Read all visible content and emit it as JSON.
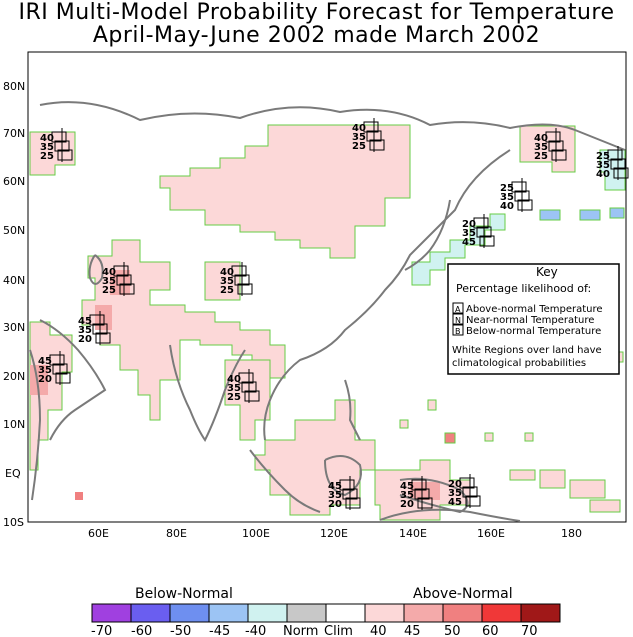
{
  "title": {
    "line1": "IRI Multi-Model Probability Forecast for Temperature",
    "line2": "April-May-June 2002 made March 2002"
  },
  "axes": {
    "lat_labels": [
      "80N",
      "70N",
      "60N",
      "50N",
      "40N",
      "30N",
      "20N",
      "10N",
      "EQ",
      "10S"
    ],
    "lon_labels": [
      "60E",
      "80E",
      "100E",
      "120E",
      "140E",
      "160E",
      "180"
    ]
  },
  "key": {
    "title": "Key",
    "subtitle": "Percentage likelihood of:",
    "rows": [
      {
        "mark": "A",
        "text": "Above-normal Temperature"
      },
      {
        "mark": "N",
        "text": "Near-normal Temperature"
      },
      {
        "mark": "B",
        "text": "Below-normal Temperature"
      }
    ],
    "note_line1": "White Regions over land have",
    "note_line2": "climatological probabilities"
  },
  "probability_boxes": [
    {
      "id": "n-europe-w",
      "values": [
        "40",
        "35",
        "25"
      ]
    },
    {
      "id": "n-siberia",
      "values": [
        "40",
        "35",
        "25"
      ]
    },
    {
      "id": "ne-siberia",
      "values": [
        "40",
        "35",
        "25"
      ]
    },
    {
      "id": "kamchatka",
      "values": [
        "25",
        "35",
        "40"
      ]
    },
    {
      "id": "sakhalin",
      "values": [
        "25",
        "35",
        "40"
      ]
    },
    {
      "id": "japan",
      "values": [
        "20",
        "35",
        "45"
      ]
    },
    {
      "id": "central-asia",
      "values": [
        "40",
        "35",
        "25"
      ]
    },
    {
      "id": "mongolia",
      "values": [
        "40",
        "35",
        "25"
      ]
    },
    {
      "id": "iran",
      "values": [
        "45",
        "35",
        "20"
      ]
    },
    {
      "id": "arabia",
      "values": [
        "45",
        "35",
        "20"
      ]
    },
    {
      "id": "se-asia",
      "values": [
        "40",
        "35",
        "25"
      ]
    },
    {
      "id": "indonesia",
      "values": [
        "45",
        "35",
        "20"
      ]
    },
    {
      "id": "png",
      "values": [
        "45",
        "35",
        "20"
      ]
    },
    {
      "id": "w-pacific",
      "values": [
        "20",
        "35",
        "45"
      ]
    }
  ],
  "colorbar": {
    "below_title": "Below-Normal",
    "above_title": "Above-Normal",
    "labels": [
      "-70",
      "-60",
      "-50",
      "-45",
      "-40",
      "Norm",
      "Clim",
      "40",
      "45",
      "50",
      "60",
      "70"
    ],
    "colors": [
      "#a040e0",
      "#6a5ef0",
      "#6e8ff0",
      "#9cc4f4",
      "#d0f2f0",
      "#c8c8c8",
      "#ffffff",
      "#fcd8d8",
      "#f4aaaa",
      "#f08080",
      "#f03838",
      "#a01818"
    ]
  },
  "colors": {
    "above_fill": "#fcd8d8",
    "above_40_45": "#f4aaaa",
    "above_50": "#f08080",
    "below_fill": "#d0f2f0",
    "below_45": "#9cc4f4",
    "contour": "#66cc44",
    "coast": "#7a7a7a"
  }
}
